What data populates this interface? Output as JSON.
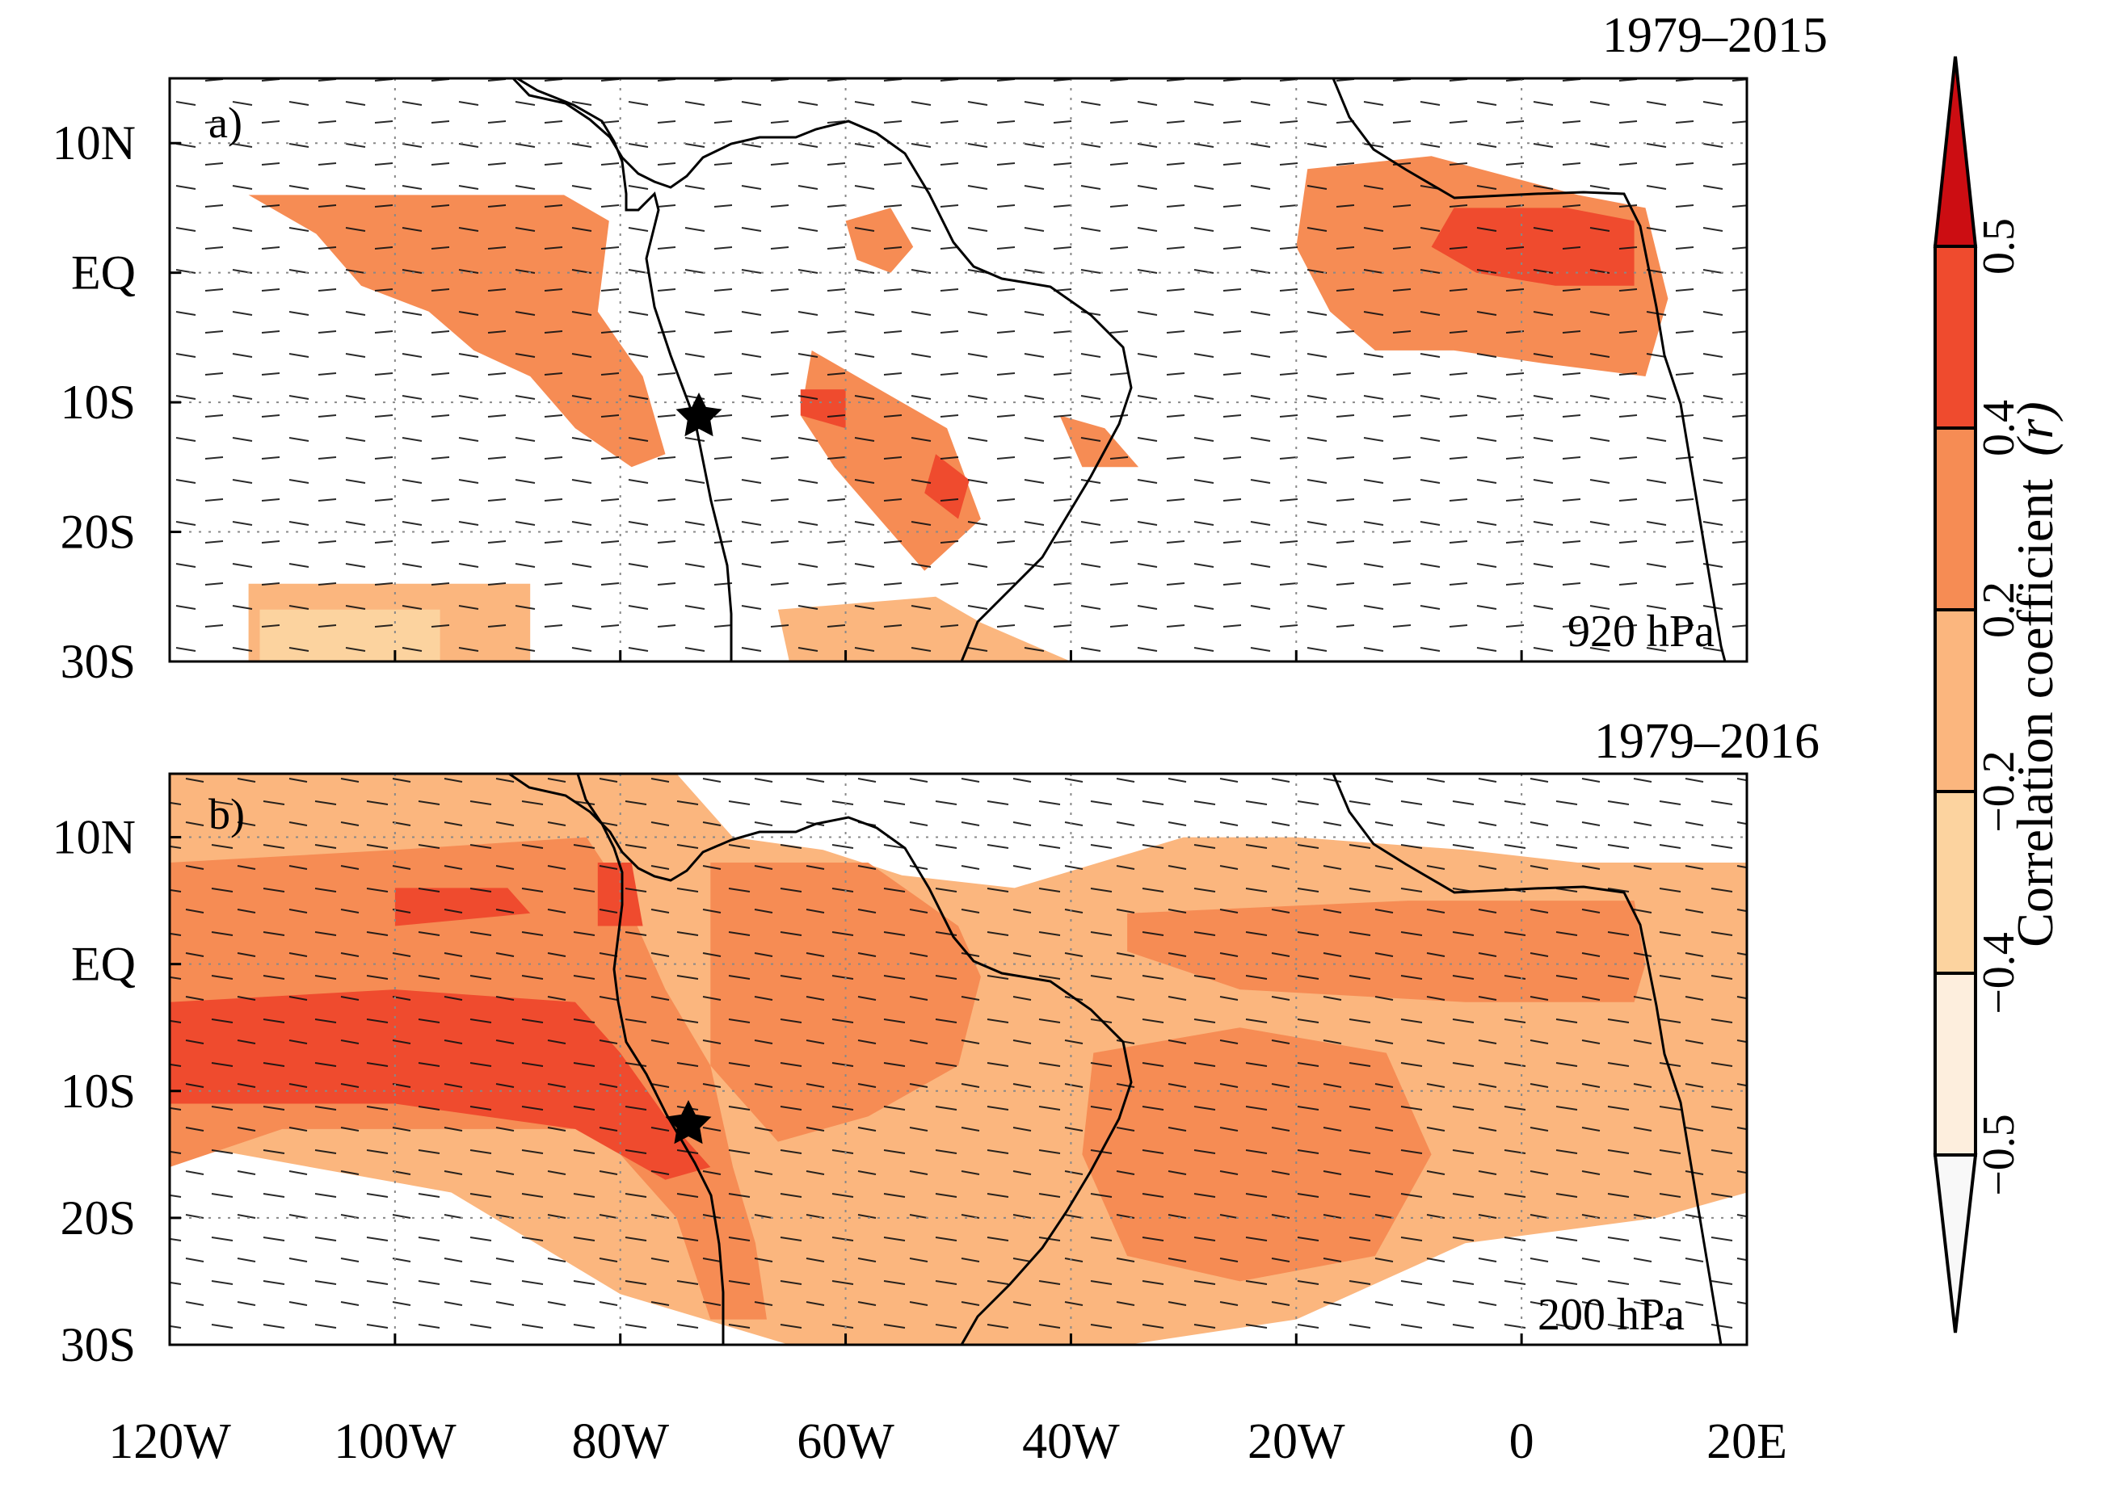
{
  "figure": {
    "panels": [
      {
        "id": "a",
        "label": "a)",
        "period": "1979–2015",
        "level": "920 hPa"
      },
      {
        "id": "b",
        "label": "b)",
        "period": "1979–2016",
        "level": "200 hPa"
      }
    ],
    "lat_ticks": [
      "10N",
      "EQ",
      "10S",
      "20S",
      "30S"
    ],
    "lon_ticks": [
      "120W",
      "100W",
      "80W",
      "60W",
      "40W",
      "20W",
      "0",
      "20E"
    ],
    "colorbar": {
      "label": "Correlation coefficient",
      "symbol": "(r)",
      "tick_labels": [
        "−0.5",
        "−0.4",
        "−0.2",
        "0.2",
        "0.4",
        "0.5"
      ],
      "bins": [
        {
          "range": "< −0.5",
          "color": "#f8f8f8"
        },
        {
          "range": "−0.5 to −0.4",
          "color": "#fdeedd"
        },
        {
          "range": "−0.4 to −0.2",
          "color": "#fcd39f"
        },
        {
          "range": "−0.2 to 0.2",
          "color": "#fbb67e"
        },
        {
          "range": "0.2 to 0.4",
          "color": "#f68c54"
        },
        {
          "range": "0.4 to 0.5",
          "color": "#ef4b2e"
        },
        {
          "range": "> 0.5",
          "color": "#cc0d12"
        }
      ]
    },
    "markers": [
      "star-icon"
    ]
  },
  "chart_data": {
    "type": "map",
    "axes": {
      "lon_range": [
        -120,
        20
      ],
      "lat_range": [
        -30,
        15
      ],
      "lon_ticks": [
        -120,
        -100,
        -80,
        -60,
        -40,
        -20,
        0,
        20
      ],
      "lat_ticks": [
        10,
        0,
        -10,
        -20,
        -30
      ]
    },
    "marker": {
      "symbol": "star",
      "lon": -75,
      "lat": -12
    },
    "panels": [
      {
        "label": "a)",
        "level": "920 hPa",
        "period": "1979–2015",
        "regions": [
          {
            "level": "0.2 to 0.4",
            "lon_lat": [
              [
                -113,
                6
              ],
              [
                -100,
                6
              ],
              [
                -85,
                6
              ],
              [
                -81,
                4
              ],
              [
                -82,
                -3
              ],
              [
                -78,
                -8
              ],
              [
                -76,
                -14
              ],
              [
                -79,
                -15
              ],
              [
                -84,
                -12
              ],
              [
                -88,
                -8
              ],
              [
                -93,
                -6
              ],
              [
                -97,
                -3
              ],
              [
                -103,
                -1
              ],
              [
                -107,
                3
              ]
            ]
          },
          {
            "level": "0.2 to 0.4",
            "lon_lat": [
              [
                -19,
                8
              ],
              [
                -8,
                9
              ],
              [
                5,
                6
              ],
              [
                11,
                5
              ],
              [
                13,
                -2
              ],
              [
                11,
                -8
              ],
              [
                2,
                -7
              ],
              [
                -6,
                -6
              ],
              [
                -13,
                -6
              ],
              [
                -17,
                -3
              ],
              [
                -20,
                2
              ]
            ]
          },
          {
            "level": "0.2 to 0.4",
            "lon_lat": [
              [
                -63,
                -6
              ],
              [
                -57,
                -9
              ],
              [
                -51,
                -12
              ],
              [
                -48,
                -19
              ],
              [
                -53,
                -23
              ],
              [
                -58,
                -18
              ],
              [
                -61,
                -15
              ],
              [
                -64,
                -11
              ]
            ]
          },
          {
            "level": "0.2 to 0.4",
            "lon_lat": [
              [
                -60,
                4
              ],
              [
                -56,
                5
              ],
              [
                -54,
                2
              ],
              [
                -56,
                0
              ],
              [
                -59,
                1
              ]
            ]
          },
          {
            "level": "0.2 to 0.4",
            "lon_lat": [
              [
                -41,
                -11
              ],
              [
                -37,
                -12
              ],
              [
                -34,
                -15
              ],
              [
                -39,
                -15
              ]
            ]
          },
          {
            "level": "0.4 to 0.5",
            "lon_lat": [
              [
                -6,
                5
              ],
              [
                4,
                5
              ],
              [
                10,
                4
              ],
              [
                10,
                -1
              ],
              [
                3,
                -1
              ],
              [
                -4,
                0
              ],
              [
                -8,
                2
              ]
            ]
          },
          {
            "level": "0.4 to 0.5",
            "lon_lat": [
              [
                -52,
                -14
              ],
              [
                -49,
                -16
              ],
              [
                -50,
                -19
              ],
              [
                -53,
                -17
              ]
            ]
          },
          {
            "level": "0.4 to 0.5",
            "lon_lat": [
              [
                -64,
                -9
              ],
              [
                -60,
                -9
              ],
              [
                -60,
                -12
              ],
              [
                -64,
                -11
              ]
            ]
          },
          {
            "level": "−0.2 to 0.2",
            "lon_lat": [
              [
                -113,
                -24
              ],
              [
                -88,
                -24
              ],
              [
                -88,
                -30
              ],
              [
                -113,
                -30
              ]
            ]
          },
          {
            "level": "−0.2 to 0.2",
            "lon_lat": [
              [
                -66,
                -26
              ],
              [
                -52,
                -25
              ],
              [
                -48,
                -27
              ],
              [
                -40,
                -30
              ],
              [
                -65,
                -30
              ]
            ]
          },
          {
            "level": "−0.4 to −0.2",
            "lon_lat": [
              [
                -112,
                -26
              ],
              [
                -96,
                -26
              ],
              [
                -96,
                -30
              ],
              [
                -112,
                -30
              ]
            ]
          }
        ]
      },
      {
        "label": "b)",
        "level": "200 hPa",
        "period": "1979–2016",
        "regions": [
          {
            "level": "−0.2 to 0.2",
            "lon_lat": [
              [
                -120,
                15
              ],
              [
                -75,
                15
              ],
              [
                -70,
                10
              ],
              [
                -62,
                9
              ],
              [
                -55,
                7
              ],
              [
                -45,
                6
              ],
              [
                -30,
                10
              ],
              [
                -20,
                10
              ],
              [
                -5,
                9
              ],
              [
                5,
                8
              ],
              [
                20,
                8
              ],
              [
                20,
                -18
              ],
              [
                12,
                -20
              ],
              [
                -5,
                -22
              ],
              [
                -20,
                -28
              ],
              [
                -35,
                -30
              ],
              [
                -65,
                -30
              ],
              [
                -80,
                -26
              ],
              [
                -95,
                -18
              ],
              [
                -120,
                -14
              ]
            ]
          },
          {
            "level": "0.2 to 0.4",
            "lon_lat": [
              [
                -120,
                8
              ],
              [
                -100,
                9
              ],
              [
                -83,
                10
              ],
              [
                -80,
                6
              ],
              [
                -76,
                -2
              ],
              [
                -72,
                -8
              ],
              [
                -70,
                -16
              ],
              [
                -68,
                -22
              ],
              [
                -67,
                -28
              ],
              [
                -72,
                -28
              ],
              [
                -75,
                -20
              ],
              [
                -82,
                -13
              ],
              [
                -95,
                -13
              ],
              [
                -110,
                -13
              ],
              [
                -120,
                -16
              ]
            ]
          },
          {
            "level": "0.2 to 0.4",
            "lon_lat": [
              [
                -72,
                8
              ],
              [
                -58,
                8
              ],
              [
                -50,
                3
              ],
              [
                -48,
                -1
              ],
              [
                -50,
                -8
              ],
              [
                -58,
                -12
              ],
              [
                -66,
                -14
              ],
              [
                -72,
                -8
              ]
            ]
          },
          {
            "level": "0.2 to 0.4",
            "lon_lat": [
              [
                -38,
                -7
              ],
              [
                -25,
                -5
              ],
              [
                -12,
                -7
              ],
              [
                -8,
                -15
              ],
              [
                -13,
                -23
              ],
              [
                -25,
                -25
              ],
              [
                -35,
                -23
              ],
              [
                -39,
                -15
              ]
            ]
          },
          {
            "level": "0.2 to 0.4",
            "lon_lat": [
              [
                -35,
                4
              ],
              [
                -10,
                5
              ],
              [
                10,
                5
              ],
              [
                11,
                0
              ],
              [
                10,
                -3
              ],
              [
                -5,
                -3
              ],
              [
                -25,
                -2
              ],
              [
                -35,
                1
              ]
            ]
          },
          {
            "level": "0.4 to 0.5",
            "lon_lat": [
              [
                -120,
                -3
              ],
              [
                -100,
                -2
              ],
              [
                -84,
                -3
              ],
              [
                -80,
                -7
              ],
              [
                -76,
                -12
              ],
              [
                -72,
                -16
              ],
              [
                -76,
                -17
              ],
              [
                -84,
                -13
              ],
              [
                -100,
                -11
              ],
              [
                -120,
                -11
              ]
            ]
          },
          {
            "level": "0.4 to 0.5",
            "lon_lat": [
              [
                -100,
                6
              ],
              [
                -90,
                6
              ],
              [
                -88,
                4
              ],
              [
                -100,
                3
              ]
            ]
          },
          {
            "level": "0.4 to 0.5",
            "lon_lat": [
              [
                -82,
                8
              ],
              [
                -79,
                8
              ],
              [
                -78,
                3
              ],
              [
                -82,
                3
              ]
            ]
          }
        ]
      }
    ]
  }
}
